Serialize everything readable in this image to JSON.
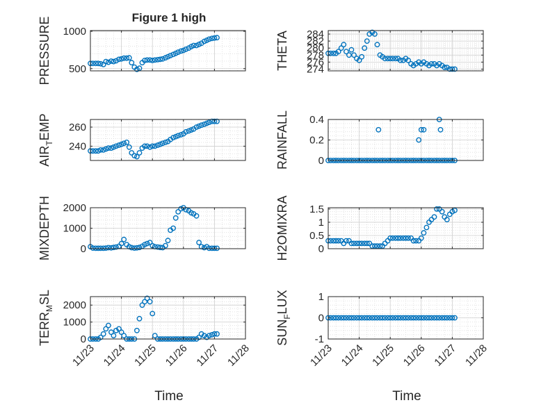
{
  "figure": {
    "title": "Figure 1 high",
    "xlabel": "Time",
    "xticks": [
      "11/23",
      "11/24",
      "11/25",
      "11/26",
      "11/27",
      "11/28"
    ]
  },
  "colors": {
    "marker": "#0072bd",
    "axis": "#262626",
    "grid": "#dcdcdc",
    "background": "#ffffff"
  },
  "chart_data": [
    {
      "type": "scatter",
      "ylabel": "PRESSURE",
      "ylim": [
        470,
        1010
      ],
      "yticks": [
        500,
        1000
      ],
      "grid": true,
      "x": [
        0.0,
        0.08,
        0.17,
        0.25,
        0.33,
        0.42,
        0.5,
        0.58,
        0.67,
        0.75,
        0.83,
        0.92,
        1.0,
        1.08,
        1.17,
        1.25,
        1.33,
        1.42,
        1.5,
        1.58,
        1.67,
        1.75,
        1.83,
        1.92,
        2.0,
        2.08,
        2.17,
        2.25,
        2.33,
        2.42,
        2.5,
        2.58,
        2.67,
        2.75,
        2.83,
        2.92,
        3.0,
        3.08,
        3.17,
        3.25,
        3.33,
        3.42,
        3.5,
        3.58,
        3.67,
        3.75,
        3.83,
        3.92,
        4.0,
        4.08
      ],
      "y": [
        570,
        570,
        570,
        570,
        565,
        555,
        595,
        585,
        600,
        595,
        605,
        625,
        630,
        640,
        640,
        645,
        580,
        520,
        490,
        505,
        580,
        610,
        615,
        615,
        610,
        615,
        620,
        625,
        630,
        645,
        660,
        675,
        690,
        705,
        720,
        735,
        745,
        760,
        775,
        795,
        810,
        810,
        825,
        840,
        865,
        880,
        895,
        905,
        910,
        915
      ]
    },
    {
      "type": "scatter",
      "ylabel": "THETA",
      "ylim": [
        273.5,
        285
      ],
      "yticks": [
        274,
        276,
        278,
        280,
        282,
        284
      ],
      "grid": true,
      "x": [
        0.0,
        0.08,
        0.17,
        0.25,
        0.33,
        0.42,
        0.5,
        0.58,
        0.67,
        0.75,
        0.83,
        0.92,
        1.0,
        1.08,
        1.17,
        1.25,
        1.33,
        1.42,
        1.5,
        1.58,
        1.67,
        1.75,
        1.83,
        1.92,
        2.0,
        2.08,
        2.17,
        2.25,
        2.33,
        2.42,
        2.5,
        2.58,
        2.67,
        2.75,
        2.83,
        2.92,
        3.0,
        3.08,
        3.17,
        3.25,
        3.33,
        3.42,
        3.5,
        3.58,
        3.67,
        3.75,
        3.83,
        3.92,
        4.0,
        4.08
      ],
      "y": [
        278.5,
        278.5,
        278.5,
        278.5,
        279.0,
        280.0,
        281.0,
        279.0,
        278.0,
        279.5,
        278.0,
        277.0,
        276.5,
        277.5,
        280.0,
        282.0,
        284.0,
        284.5,
        284.0,
        281.0,
        278.0,
        277.5,
        277.0,
        277.0,
        277.0,
        277.0,
        277.0,
        277.0,
        276.5,
        276.5,
        277.0,
        276.5,
        275.5,
        275.0,
        275.5,
        276.0,
        275.5,
        276.0,
        275.5,
        275.0,
        275.5,
        275.5,
        275.0,
        275.5,
        275.0,
        274.5,
        274.5,
        274.0,
        274.0,
        274.0
      ]
    },
    {
      "type": "scatter",
      "ylabel": "AIR_TEMP",
      "ylim": [
        225,
        268
      ],
      "yticks": [
        240,
        260
      ],
      "grid": true,
      "x": [
        0.0,
        0.08,
        0.17,
        0.25,
        0.33,
        0.42,
        0.5,
        0.58,
        0.67,
        0.75,
        0.83,
        0.92,
        1.0,
        1.08,
        1.17,
        1.25,
        1.33,
        1.42,
        1.5,
        1.58,
        1.67,
        1.75,
        1.83,
        1.92,
        2.0,
        2.08,
        2.17,
        2.25,
        2.33,
        2.42,
        2.5,
        2.58,
        2.67,
        2.75,
        2.83,
        2.92,
        3.0,
        3.08,
        3.17,
        3.25,
        3.33,
        3.42,
        3.5,
        3.58,
        3.67,
        3.75,
        3.83,
        3.92,
        4.0,
        4.08
      ],
      "y": [
        235,
        235,
        235,
        235,
        236,
        236,
        237,
        238,
        238,
        239,
        240,
        241,
        242,
        243,
        244,
        239,
        233,
        230,
        229,
        233,
        238,
        240,
        240,
        239,
        240,
        240,
        241,
        242,
        243,
        244,
        245,
        247,
        249,
        250,
        251,
        252,
        253,
        255,
        256,
        257,
        258,
        260,
        261,
        262,
        263,
        264,
        265,
        266,
        266,
        266
      ]
    },
    {
      "type": "scatter",
      "ylabel": "RAINFALL",
      "ylim": [
        0,
        0.4
      ],
      "yticks": [
        0,
        0.2,
        0.4
      ],
      "grid": true,
      "x": [
        0.0,
        0.08,
        0.17,
        0.25,
        0.33,
        0.42,
        0.5,
        0.58,
        0.67,
        0.75,
        0.83,
        0.92,
        1.0,
        1.08,
        1.17,
        1.25,
        1.33,
        1.42,
        1.5,
        1.58,
        1.67,
        1.75,
        1.83,
        1.92,
        2.0,
        2.08,
        2.17,
        2.25,
        2.33,
        2.42,
        2.5,
        2.58,
        2.67,
        2.75,
        2.83,
        2.92,
        3.0,
        3.08,
        3.17,
        3.25,
        3.33,
        3.42,
        3.5,
        3.58,
        3.67,
        3.75,
        3.83,
        3.92,
        4.0,
        4.08,
        1.62,
        2.92,
        3.0,
        3.08,
        3.58,
        3.62
      ],
      "y": [
        0,
        0,
        0,
        0,
        0,
        0,
        0,
        0,
        0,
        0,
        0,
        0,
        0,
        0,
        0,
        0,
        0,
        0,
        0,
        0,
        0,
        0,
        0,
        0,
        0,
        0,
        0,
        0,
        0,
        0,
        0,
        0,
        0,
        0,
        0,
        0,
        0,
        0,
        0,
        0,
        0,
        0,
        0,
        0,
        0,
        0,
        0,
        0,
        0,
        0,
        0.3,
        0.2,
        0.3,
        0.3,
        0.4,
        0.3
      ]
    },
    {
      "type": "scatter",
      "ylabel": "MIXDEPTH",
      "ylim": [
        0,
        2000
      ],
      "yticks": [
        0,
        1000,
        2000
      ],
      "grid": true,
      "x": [
        0.0,
        0.08,
        0.17,
        0.25,
        0.33,
        0.42,
        0.5,
        0.58,
        0.67,
        0.75,
        0.83,
        0.92,
        1.0,
        1.08,
        1.17,
        1.25,
        1.33,
        1.42,
        1.5,
        1.58,
        1.67,
        1.75,
        1.83,
        1.92,
        2.0,
        2.08,
        2.17,
        2.25,
        2.33,
        2.42,
        2.5,
        2.58,
        2.67,
        2.75,
        2.83,
        2.92,
        3.0,
        3.08,
        3.17,
        3.25,
        3.33,
        3.42,
        3.5,
        3.58,
        3.67,
        3.75,
        3.83,
        3.92,
        4.0,
        4.08
      ],
      "y": [
        100,
        30,
        20,
        20,
        20,
        20,
        30,
        50,
        40,
        60,
        80,
        120,
        250,
        450,
        200,
        100,
        50,
        30,
        40,
        60,
        120,
        200,
        250,
        300,
        150,
        100,
        80,
        60,
        50,
        150,
        400,
        900,
        1000,
        1500,
        1800,
        1950,
        2000,
        1900,
        1850,
        1750,
        1700,
        1600,
        300,
        100,
        50,
        100,
        20,
        20,
        20,
        20
      ]
    },
    {
      "type": "scatter",
      "ylabel": "H2OMIXRA",
      "ylim": [
        0,
        1.55
      ],
      "yticks": [
        0,
        0.5,
        1,
        1.5
      ],
      "grid": true,
      "x": [
        0.0,
        0.08,
        0.17,
        0.25,
        0.33,
        0.42,
        0.5,
        0.58,
        0.67,
        0.75,
        0.83,
        0.92,
        1.0,
        1.08,
        1.17,
        1.25,
        1.33,
        1.42,
        1.5,
        1.58,
        1.67,
        1.75,
        1.83,
        1.92,
        2.0,
        2.08,
        2.17,
        2.25,
        2.33,
        2.42,
        2.5,
        2.58,
        2.67,
        2.75,
        2.83,
        2.92,
        3.0,
        3.08,
        3.17,
        3.25,
        3.33,
        3.42,
        3.5,
        3.58,
        3.67,
        3.75,
        3.83,
        3.92,
        4.0,
        4.08
      ],
      "y": [
        0.3,
        0.3,
        0.3,
        0.3,
        0.3,
        0.3,
        0.2,
        0.3,
        0.3,
        0.2,
        0.2,
        0.2,
        0.2,
        0.2,
        0.2,
        0.2,
        0.2,
        0.1,
        0.1,
        0.1,
        0.1,
        0.1,
        0.2,
        0.3,
        0.4,
        0.4,
        0.4,
        0.4,
        0.4,
        0.4,
        0.4,
        0.4,
        0.4,
        0.3,
        0.3,
        0.3,
        0.4,
        0.6,
        0.8,
        1.0,
        1.1,
        1.2,
        1.5,
        1.5,
        1.4,
        1.2,
        1.1,
        1.3,
        1.4,
        1.45
      ]
    },
    {
      "type": "scatter",
      "ylabel": "TERR_MSL",
      "ylim": [
        0,
        2500
      ],
      "yticks": [
        0,
        1000,
        2000
      ],
      "grid": true,
      "x": [
        0.0,
        0.08,
        0.17,
        0.25,
        0.33,
        0.42,
        0.5,
        0.58,
        0.67,
        0.75,
        0.83,
        0.92,
        1.0,
        1.08,
        1.17,
        1.25,
        1.33,
        1.42,
        1.5,
        1.58,
        1.67,
        1.75,
        1.83,
        1.92,
        2.0,
        2.08,
        2.17,
        2.25,
        2.33,
        2.42,
        2.5,
        2.58,
        2.67,
        2.75,
        2.83,
        2.92,
        3.0,
        3.08,
        3.17,
        3.25,
        3.33,
        3.42,
        3.5,
        3.58,
        3.67,
        3.75,
        3.83,
        3.92,
        4.0,
        4.08
      ],
      "y": [
        0,
        0,
        0,
        0,
        100,
        300,
        600,
        800,
        400,
        200,
        500,
        600,
        400,
        200,
        0,
        0,
        0,
        0,
        500,
        1200,
        2000,
        2200,
        2400,
        2200,
        1500,
        200,
        0,
        0,
        0,
        0,
        0,
        0,
        0,
        0,
        0,
        0,
        0,
        0,
        0,
        0,
        0,
        0,
        100,
        300,
        200,
        100,
        200,
        250,
        300,
        300
      ]
    },
    {
      "type": "scatter",
      "ylabel": "SUN_FLUX",
      "ylim": [
        -1,
        1
      ],
      "yticks": [
        -1,
        0,
        1
      ],
      "grid": true,
      "x": [
        0.0,
        0.08,
        0.17,
        0.25,
        0.33,
        0.42,
        0.5,
        0.58,
        0.67,
        0.75,
        0.83,
        0.92,
        1.0,
        1.08,
        1.17,
        1.25,
        1.33,
        1.42,
        1.5,
        1.58,
        1.67,
        1.75,
        1.83,
        1.92,
        2.0,
        2.08,
        2.17,
        2.25,
        2.33,
        2.42,
        2.5,
        2.58,
        2.67,
        2.75,
        2.83,
        2.92,
        3.0,
        3.08,
        3.17,
        3.25,
        3.33,
        3.42,
        3.5,
        3.58,
        3.67,
        3.75,
        3.83,
        3.92,
        4.0,
        4.08
      ],
      "y": [
        0,
        0,
        0,
        0,
        0,
        0,
        0,
        0,
        0,
        0,
        0,
        0,
        0,
        0,
        0,
        0,
        0,
        0,
        0,
        0,
        0,
        0,
        0,
        0,
        0,
        0,
        0,
        0,
        0,
        0,
        0,
        0,
        0,
        0,
        0,
        0,
        0,
        0,
        0,
        0,
        0,
        0,
        0,
        0,
        0,
        0,
        0,
        0,
        0,
        0
      ]
    }
  ]
}
